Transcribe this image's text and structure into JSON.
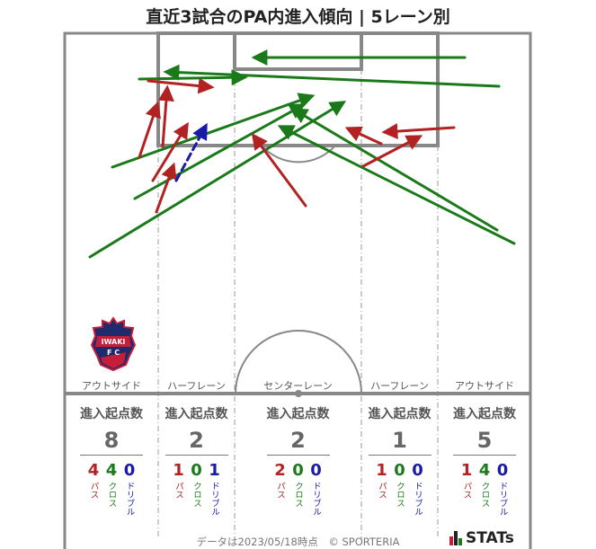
{
  "title": "直近3試合のPA内進入傾向 | 5レーン別",
  "lanes": [
    "アウトサイド",
    "ハーフレーン",
    "センターレーン",
    "ハーフレーン",
    "アウトサイド"
  ],
  "stats": {
    "header": "進入起点数",
    "labels": {
      "pass": "パス",
      "cross": "クロス",
      "dribble": "ドリブル"
    },
    "columns": [
      {
        "total": "8",
        "pass": "4",
        "cross": "4",
        "dribble": "0"
      },
      {
        "total": "2",
        "pass": "1",
        "cross": "0",
        "dribble": "1"
      },
      {
        "total": "2",
        "pass": "2",
        "cross": "0",
        "dribble": "0"
      },
      {
        "total": "1",
        "pass": "1",
        "cross": "0",
        "dribble": "0"
      },
      {
        "total": "5",
        "pass": "1",
        "cross": "4",
        "dribble": "0"
      }
    ]
  },
  "footer": "データは2023/05/18時点　© SPORTERIA",
  "brand": "STATs",
  "club_logo_text": "IWAKI FC",
  "colors": {
    "pass": "#b22222",
    "cross": "#1a7a1a",
    "dribble": "#1a1aaa",
    "lines": "#888888"
  },
  "arrows": [
    {
      "type": "cross",
      "from": [
        155,
        88
      ],
      "to": [
        272,
        86
      ]
    },
    {
      "type": "cross",
      "from": [
        517,
        64
      ],
      "to": [
        283,
        64
      ]
    },
    {
      "type": "cross",
      "from": [
        555,
        96
      ],
      "to": [
        185,
        80
      ]
    },
    {
      "type": "cross",
      "from": [
        125,
        186
      ],
      "to": [
        347,
        107
      ]
    },
    {
      "type": "cross",
      "from": [
        150,
        221
      ],
      "to": [
        337,
        117
      ]
    },
    {
      "type": "cross",
      "from": [
        100,
        286
      ],
      "to": [
        382,
        114
      ]
    },
    {
      "type": "cross",
      "from": [
        553,
        256
      ],
      "to": [
        327,
        122
      ]
    },
    {
      "type": "cross",
      "from": [
        572,
        271
      ],
      "to": [
        312,
        141
      ]
    },
    {
      "type": "pass",
      "from": [
        165,
        90
      ],
      "to": [
        235,
        97
      ]
    },
    {
      "type": "pass",
      "from": [
        155,
        175
      ],
      "to": [
        175,
        116
      ]
    },
    {
      "type": "pass",
      "from": [
        181,
        163
      ],
      "to": [
        186,
        98
      ]
    },
    {
      "type": "pass",
      "from": [
        170,
        201
      ],
      "to": [
        208,
        139
      ]
    },
    {
      "type": "pass",
      "from": [
        174,
        236
      ],
      "to": [
        193,
        184
      ]
    },
    {
      "type": "pass",
      "from": [
        340,
        229
      ],
      "to": [
        282,
        151
      ]
    },
    {
      "type": "pass",
      "from": [
        424,
        160
      ],
      "to": [
        387,
        143
      ]
    },
    {
      "type": "pass",
      "from": [
        404,
        185
      ],
      "to": [
        467,
        152
      ]
    },
    {
      "type": "pass",
      "from": [
        505,
        142
      ],
      "to": [
        428,
        147
      ]
    },
    {
      "type": "dribble",
      "from": [
        196,
        201
      ],
      "to": [
        229,
        140
      ]
    }
  ]
}
